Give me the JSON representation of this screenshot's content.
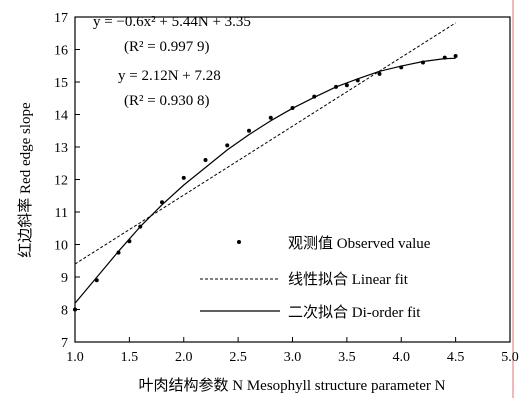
{
  "chart_data": {
    "type": "scatter",
    "xlabel": "叶肉结构参数 N  Mesophyll structure parameter N",
    "ylabel": "红边斜率 Red edge slope",
    "xlim": [
      1.0,
      5.0
    ],
    "ylim": [
      7,
      17
    ],
    "x_ticks": [
      "1.0",
      "1.5",
      "2.0",
      "2.5",
      "3.0",
      "3.5",
      "4.0",
      "4.5",
      "5.0"
    ],
    "y_ticks": [
      "7",
      "8",
      "9",
      "10",
      "11",
      "12",
      "13",
      "14",
      "15",
      "16",
      "17"
    ],
    "legend_position": "bottom-right",
    "series": [
      {
        "name": "观测值 Observed value",
        "kind": "scatter",
        "x": [
          1.0,
          1.2,
          1.4,
          1.5,
          1.6,
          1.8,
          2.0,
          2.2,
          2.4,
          2.6,
          2.8,
          3.0,
          3.2,
          3.4,
          3.5,
          3.6,
          3.8,
          4.0,
          4.2,
          4.4,
          4.5
        ],
        "values": [
          8.0,
          8.9,
          9.75,
          10.1,
          10.55,
          11.3,
          12.05,
          12.6,
          13.05,
          13.5,
          13.9,
          14.2,
          14.55,
          14.85,
          14.9,
          15.05,
          15.25,
          15.45,
          15.6,
          15.75,
          15.8
        ]
      },
      {
        "name": "线性拟合 Linear fit",
        "kind": "line",
        "style": "dashed",
        "x": [
          1.0,
          4.5
        ],
        "values": [
          9.4,
          16.82
        ]
      },
      {
        "name": "二次拟合 Di-order fit",
        "kind": "line",
        "style": "solid",
        "x": [
          1.0,
          1.2,
          1.4,
          1.6,
          1.8,
          2.0,
          2.2,
          2.4,
          2.6,
          2.8,
          3.0,
          3.2,
          3.4,
          3.6,
          3.8,
          4.0,
          4.2,
          4.4,
          4.5
        ],
        "values": [
          8.19,
          8.99,
          9.79,
          10.55,
          11.22,
          11.83,
          12.37,
          12.91,
          13.38,
          13.81,
          14.19,
          14.53,
          14.85,
          15.1,
          15.33,
          15.49,
          15.63,
          15.72,
          15.73
        ]
      }
    ],
    "annotations": {
      "quadratic_equation": "y = −0.6x² + 5.44N + 3.35",
      "quadratic_r2": "(R² = 0.997 9)",
      "linear_equation": "y = 2.12N + 7.28",
      "linear_r2": "(R² = 0.930 8)"
    }
  }
}
